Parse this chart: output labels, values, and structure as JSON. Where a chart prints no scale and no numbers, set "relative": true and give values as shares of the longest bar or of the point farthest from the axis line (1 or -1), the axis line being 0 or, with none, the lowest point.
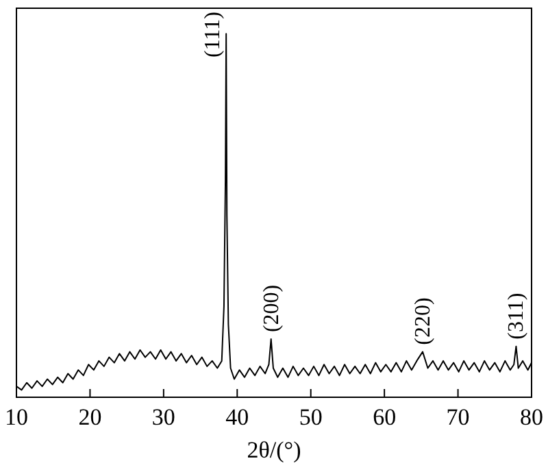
{
  "chart_data": {
    "type": "line",
    "xlabel": "2θ/(°)",
    "relative": true,
    "xlim": [
      10,
      80
    ],
    "xticks": [
      10,
      20,
      30,
      40,
      50,
      60,
      70,
      80
    ],
    "grid": false,
    "legend": false,
    "marker": "none",
    "line_style": "solid",
    "series": [
      {
        "color": "#000000",
        "x": [
          10,
          10.7,
          11.4,
          12.1,
          12.8,
          13.5,
          14.2,
          14.9,
          15.6,
          16.3,
          17,
          17.7,
          18.4,
          19.1,
          19.8,
          20.5,
          21.2,
          21.9,
          22.6,
          23.3,
          24,
          24.7,
          25.4,
          26.1,
          26.8,
          27.5,
          28.2,
          28.9,
          29.6,
          30.3,
          31,
          31.7,
          32.4,
          33.1,
          33.8,
          34.5,
          35.2,
          35.9,
          36.6,
          37.3,
          37.9,
          38.2,
          38.4,
          38.5,
          38.6,
          38.8,
          39.1,
          39.6,
          40.3,
          41,
          41.7,
          42.4,
          43.1,
          43.8,
          44.3,
          44.6,
          44.9,
          45.5,
          46.2,
          46.9,
          47.6,
          48.3,
          49,
          49.7,
          50.4,
          51.1,
          51.8,
          52.5,
          53.2,
          53.9,
          54.6,
          55.3,
          56,
          56.7,
          57.4,
          58.1,
          58.8,
          59.5,
          60.2,
          60.9,
          61.6,
          62.3,
          63,
          63.7,
          64.4,
          65.2,
          65.9,
          66.6,
          67.3,
          68,
          68.7,
          69.4,
          70.1,
          70.8,
          71.5,
          72.2,
          72.9,
          73.6,
          74.3,
          75,
          75.7,
          76.4,
          77.1,
          77.6,
          77.9,
          78.2,
          78.8,
          79.5,
          80
        ],
        "values": [
          0.03,
          0.02,
          0.04,
          0.025,
          0.045,
          0.03,
          0.05,
          0.035,
          0.055,
          0.04,
          0.065,
          0.05,
          0.075,
          0.06,
          0.09,
          0.075,
          0.1,
          0.085,
          0.11,
          0.095,
          0.12,
          0.1,
          0.125,
          0.105,
          0.13,
          0.11,
          0.125,
          0.105,
          0.13,
          0.105,
          0.125,
          0.1,
          0.12,
          0.095,
          0.115,
          0.09,
          0.11,
          0.085,
          0.1,
          0.08,
          0.1,
          0.25,
          0.6,
          1,
          0.5,
          0.2,
          0.08,
          0.05,
          0.075,
          0.055,
          0.08,
          0.06,
          0.085,
          0.065,
          0.09,
          0.16,
          0.08,
          0.055,
          0.08,
          0.055,
          0.085,
          0.06,
          0.08,
          0.06,
          0.085,
          0.06,
          0.09,
          0.065,
          0.085,
          0.06,
          0.09,
          0.065,
          0.085,
          0.065,
          0.09,
          0.065,
          0.095,
          0.07,
          0.09,
          0.07,
          0.095,
          0.07,
          0.1,
          0.075,
          0.1,
          0.125,
          0.08,
          0.1,
          0.075,
          0.1,
          0.075,
          0.095,
          0.07,
          0.1,
          0.075,
          0.095,
          0.07,
          0.1,
          0.075,
          0.095,
          0.07,
          0.1,
          0.075,
          0.09,
          0.14,
          0.08,
          0.1,
          0.075,
          0.095
        ]
      }
    ],
    "annotations": [
      {
        "text": "(111)",
        "x": 38.5,
        "y": 1
      },
      {
        "text": "(200)",
        "x": 44.6,
        "y": 0.16
      },
      {
        "text": "(220)",
        "x": 65.2,
        "y": 0.125
      },
      {
        "text": "(311)",
        "x": 77.9,
        "y": 0.14
      }
    ]
  }
}
